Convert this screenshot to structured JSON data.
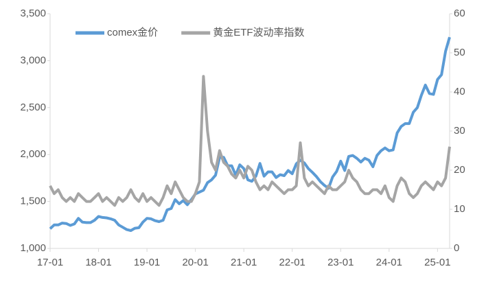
{
  "chart_data": {
    "type": "line",
    "categories": [
      "17-01",
      null,
      null,
      null,
      null,
      null,
      null,
      null,
      null,
      null,
      null,
      null,
      "18-01",
      null,
      null,
      null,
      null,
      null,
      null,
      null,
      null,
      null,
      null,
      null,
      "19-01",
      null,
      null,
      null,
      null,
      null,
      null,
      null,
      null,
      null,
      null,
      null,
      "20-01",
      null,
      null,
      null,
      null,
      null,
      null,
      null,
      null,
      null,
      null,
      null,
      "21-01",
      null,
      null,
      null,
      null,
      null,
      null,
      null,
      null,
      null,
      null,
      null,
      "22-01",
      null,
      null,
      null,
      null,
      null,
      null,
      null,
      null,
      null,
      null,
      null,
      "23-01",
      null,
      null,
      null,
      null,
      null,
      null,
      null,
      null,
      null,
      null,
      null,
      "24-01",
      null,
      null,
      null,
      null,
      null,
      null,
      null,
      null,
      null,
      null,
      null,
      "25-01",
      null,
      null,
      null
    ],
    "series": [
      {
        "name": "comex金价",
        "color": "#5b9bd5",
        "axis": "y",
        "values": [
          1210,
          1250,
          1250,
          1270,
          1265,
          1245,
          1260,
          1320,
          1280,
          1275,
          1275,
          1300,
          1340,
          1330,
          1325,
          1315,
          1300,
          1250,
          1225,
          1200,
          1190,
          1215,
          1220,
          1280,
          1320,
          1315,
          1295,
          1285,
          1300,
          1410,
          1425,
          1520,
          1475,
          1510,
          1465,
          1520,
          1580,
          1600,
          1620,
          1700,
          1730,
          1780,
          1970,
          1970,
          1880,
          1880,
          1780,
          1890,
          1850,
          1730,
          1715,
          1770,
          1905,
          1770,
          1815,
          1815,
          1755,
          1785,
          1775,
          1830,
          1795,
          1900,
          1940,
          1910,
          1850,
          1810,
          1765,
          1710,
          1670,
          1640,
          1760,
          1820,
          1930,
          1830,
          1980,
          1990,
          1960,
          1920,
          1960,
          1940,
          1870,
          1990,
          2040,
          2070,
          2040,
          2050,
          2230,
          2300,
          2330,
          2330,
          2450,
          2500,
          2630,
          2740,
          2650,
          2640,
          2800,
          2850,
          3100,
          3250
        ]
      },
      {
        "name": "黄金ETF波动率指数",
        "color": "#a5a5a5",
        "axis": "y2",
        "values": [
          16,
          14,
          15,
          13,
          12,
          13,
          12,
          14,
          13,
          12,
          12,
          13,
          14,
          12,
          13,
          12,
          11,
          13,
          12,
          13,
          15,
          13,
          12,
          14,
          12,
          13,
          12,
          11,
          13,
          16,
          14,
          17,
          15,
          13,
          12,
          12,
          14,
          17,
          44,
          30,
          22,
          20,
          25,
          22,
          21,
          19,
          18,
          20,
          18,
          21,
          20,
          17,
          15,
          16,
          15,
          17,
          16,
          15,
          14,
          15,
          15,
          16,
          27,
          18,
          16,
          17,
          16,
          15,
          14,
          16,
          15,
          15,
          16,
          17,
          20,
          18,
          17,
          15,
          14,
          14,
          15,
          15,
          14,
          16,
          13,
          12,
          16,
          18,
          17,
          14,
          13,
          14,
          16,
          17,
          16,
          15,
          17,
          16,
          18,
          26
        ]
      }
    ],
    "ylim": [
      1000,
      3500
    ],
    "yticks": [
      {
        "value": 1000,
        "label": "1,000"
      },
      {
        "value": 1500,
        "label": "1,500"
      },
      {
        "value": 2000,
        "label": "2,000"
      },
      {
        "value": 2500,
        "label": "2,500"
      },
      {
        "value": 3000,
        "label": "3,000"
      },
      {
        "value": 3500,
        "label": "3,500"
      }
    ],
    "y2lim": [
      0,
      60
    ],
    "y2ticks": [
      0,
      10,
      20,
      30,
      40,
      50,
      60
    ],
    "legend": "top-left"
  }
}
